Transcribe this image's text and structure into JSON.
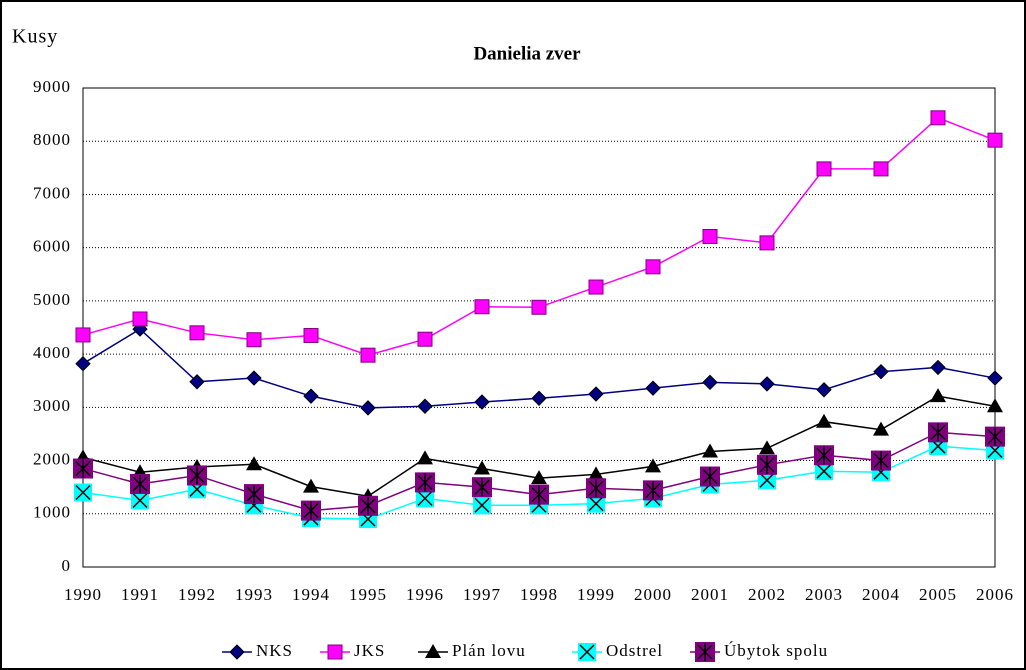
{
  "chart_data": {
    "type": "line",
    "title": "Danielia zver",
    "y_label": "Kusy",
    "categories": [
      "1990",
      "1991",
      "1992",
      "1993",
      "1994",
      "1995",
      "1996",
      "1997",
      "1998",
      "1999",
      "2000",
      "2001",
      "2002",
      "2003",
      "2004",
      "2005",
      "2006"
    ],
    "series": [
      {
        "name": "NKS",
        "color": "#000080",
        "marker": "diamond",
        "values": [
          3820,
          4470,
          3480,
          3550,
          3210,
          2990,
          3020,
          3100,
          3170,
          3250,
          3360,
          3470,
          3440,
          3330,
          3670,
          3750,
          3550
        ]
      },
      {
        "name": "JKS",
        "color": "#ff00ff",
        "marker": "square",
        "values": [
          4360,
          4660,
          4400,
          4270,
          4350,
          3980,
          4280,
          4890,
          4880,
          5260,
          5640,
          6210,
          6090,
          7480,
          7480,
          8440,
          8020
        ]
      },
      {
        "name": "Plán lovu",
        "color": "#000000",
        "marker": "triangle",
        "values": [
          2060,
          1780,
          1880,
          1930,
          1510,
          1330,
          2040,
          1850,
          1670,
          1740,
          1890,
          2170,
          2230,
          2730,
          2580,
          3210,
          3020
        ]
      },
      {
        "name": "Odstrel",
        "color": "#00ffff",
        "marker": "x",
        "values": [
          1400,
          1250,
          1460,
          1160,
          920,
          900,
          1290,
          1160,
          1160,
          1190,
          1290,
          1550,
          1630,
          1800,
          1780,
          2270,
          2190
        ]
      },
      {
        "name": "Úbytok spolu",
        "color": "#800080",
        "marker": "star",
        "values": [
          1850,
          1560,
          1720,
          1370,
          1060,
          1150,
          1590,
          1500,
          1360,
          1480,
          1440,
          1700,
          1920,
          2100,
          2000,
          2530,
          2450
        ]
      }
    ],
    "ylim": [
      0,
      9000
    ],
    "yticks": [
      0,
      1000,
      2000,
      3000,
      4000,
      5000,
      6000,
      7000,
      8000,
      9000
    ],
    "grid": true
  }
}
